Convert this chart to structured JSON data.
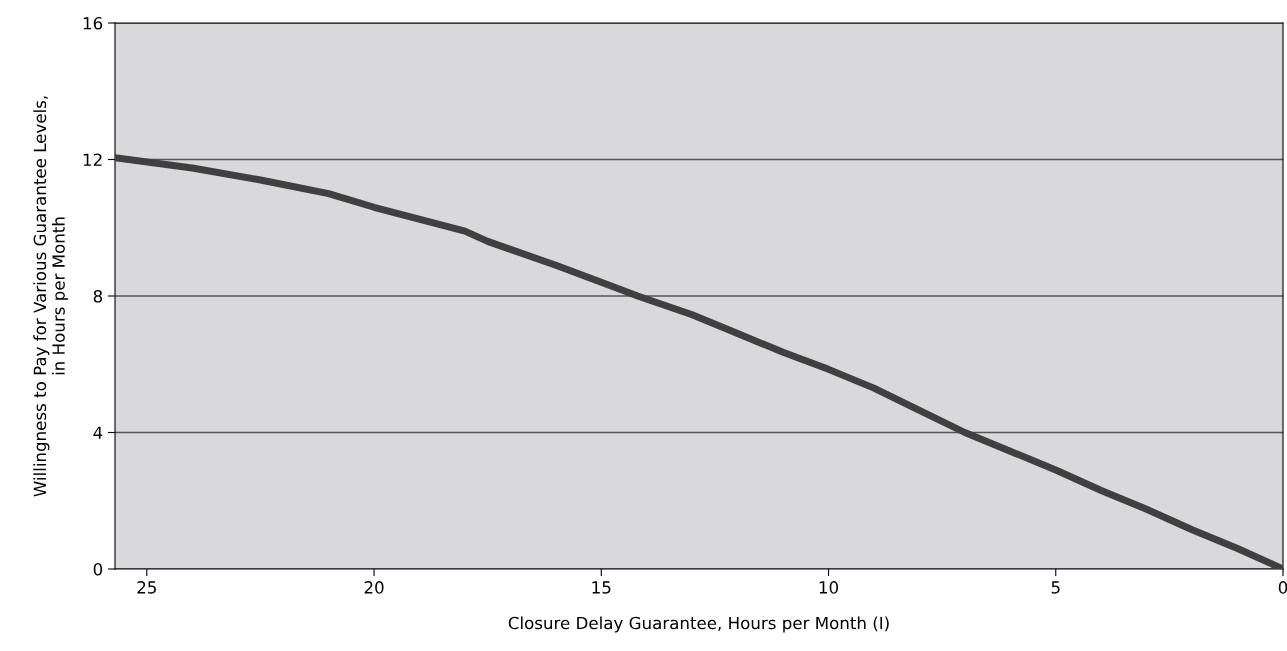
{
  "chart_data": {
    "type": "line",
    "xlabel": "Closure Delay Guarantee, Hours per Month (I)",
    "ylabel": "Willingness to Pay for Various Guarantee Levels,\nin Hours per Month",
    "series": [
      {
        "color": "#404040",
        "x": [
          25.7,
          24,
          22.5,
          21,
          20,
          18,
          17.5,
          16,
          15,
          14.2,
          13,
          12,
          11,
          10,
          9,
          8,
          7,
          6,
          5,
          4,
          3,
          2.5,
          2,
          1,
          0
        ],
        "values": [
          12.05,
          11.75,
          11.4,
          11.0,
          10.6,
          9.9,
          9.6,
          8.9,
          8.4,
          8.0,
          7.45,
          6.9,
          6.35,
          5.85,
          5.3,
          4.65,
          4.0,
          3.45,
          2.9,
          2.3,
          1.75,
          1.45,
          1.15,
          0.6,
          0.0
        ]
      }
    ],
    "xlim": [
      25.7,
      0
    ],
    "xticks": [
      25,
      20,
      15,
      10,
      5,
      0
    ],
    "ylim": [
      0,
      16
    ],
    "yticks": [
      0,
      4,
      8,
      12,
      16
    ],
    "grid": "y",
    "marker": "none",
    "line_style": "solid"
  }
}
